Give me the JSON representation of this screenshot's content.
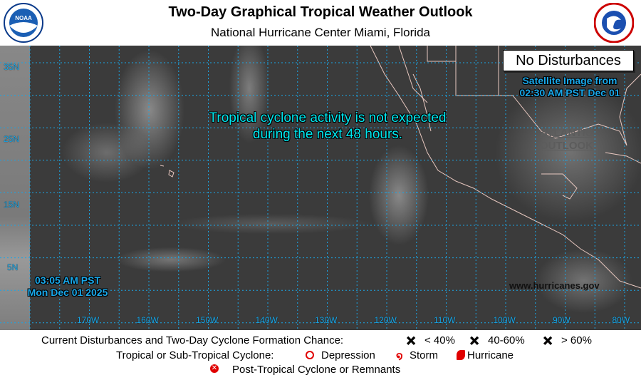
{
  "header": {
    "title": "Two-Day Graphical Tropical Weather Outlook",
    "subtitle": "National Hurricane Center  Miami, Florida",
    "logo_left": "NOAA",
    "logo_right": "NATIONAL WEATHER SERVICE"
  },
  "map": {
    "status_box": "No Disturbances",
    "satellite_time": [
      "Satellite Image from",
      "02:30 AM PST Dec 01"
    ],
    "message": [
      "Tropical cyclone activity is not expected",
      "during the next 48 hours."
    ],
    "issued": [
      "03:05 AM PST",
      "Mon Dec 01 2025"
    ],
    "atlantic_link": [
      "ATLANTIC",
      "OUTLOOK"
    ],
    "website": "www.hurricanes.gov",
    "lat_labels": [
      "35N",
      "25N",
      "15N",
      "5N"
    ],
    "lon_labels": [
      "170W",
      "160W",
      "150W",
      "140W",
      "130W",
      "120W",
      "110W",
      "100W",
      "90W",
      "80W"
    ]
  },
  "legend": {
    "row1_label": "Current Disturbances and Two-Day Cyclone Formation Chance:",
    "chances": [
      {
        "label": "< 40%",
        "color": "#ffff00"
      },
      {
        "label": "40-60%",
        "color": "#ff8c00"
      },
      {
        "label": "> 60%",
        "color": "#e00000"
      }
    ],
    "row2_label": "Tropical or Sub-Tropical Cyclone:",
    "cyclones": [
      {
        "label": "Depression",
        "icon": "circle-icon"
      },
      {
        "label": "Storm",
        "icon": "storm-icon"
      },
      {
        "label": "Hurricane",
        "icon": "hurricane-icon"
      }
    ],
    "row3_label": "Post-Tropical Cyclone or Remnants",
    "symbol_color": "#e00000"
  }
}
